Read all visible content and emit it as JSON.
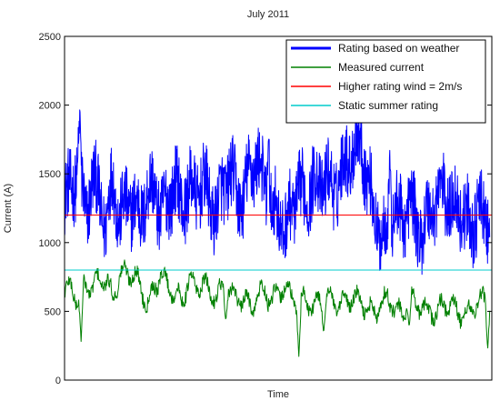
{
  "chart_data": {
    "type": "line",
    "title": "July 2011",
    "xlabel": "Time",
    "ylabel": "Current (A)",
    "xlim": [
      0,
      31
    ],
    "ylim": [
      0,
      2500
    ],
    "yticks": [
      0,
      500,
      1000,
      1500,
      2000,
      2500
    ],
    "xtick_labels": [],
    "grid": false,
    "legend_position": "top-right",
    "series": [
      {
        "name": "Rating based on weather",
        "color": "#0000ff",
        "style": "noisy",
        "x": [
          0,
          0.5,
          1,
          1.5,
          2,
          2.5,
          3,
          3.5,
          4,
          4.5,
          5,
          5.5,
          6,
          6.5,
          7,
          7.5,
          8,
          8.5,
          9,
          9.5,
          10,
          10.5,
          11,
          11.5,
          12,
          12.5,
          13,
          13.5,
          14,
          14.5,
          15,
          15.5,
          16,
          16.5,
          17,
          17.5,
          18,
          18.5,
          19,
          19.5,
          20,
          20.5,
          21,
          21.5,
          22,
          22.5,
          23,
          23.5,
          24,
          24.5,
          25,
          25.5,
          26,
          26.5,
          27,
          27.5,
          28,
          28.5,
          29,
          29.5,
          30,
          30.5,
          31
        ],
        "values": [
          1300,
          1400,
          1550,
          1200,
          1450,
          1350,
          1100,
          1500,
          1150,
          1300,
          1250,
          1200,
          1350,
          1400,
          1200,
          1300,
          1450,
          1250,
          1400,
          1350,
          1450,
          1300,
          1200,
          1400,
          1500,
          1350,
          1300,
          1550,
          1600,
          1400,
          1250,
          1200,
          1100,
          1250,
          1400,
          1300,
          1450,
          1400,
          1500,
          1350,
          1500,
          1600,
          1700,
          1750,
          1450,
          1200,
          1050,
          1100,
          1250,
          1150,
          1300,
          1150,
          1050,
          1250,
          1300,
          1400,
          1250,
          1300,
          1200,
          1100,
          1250,
          1150,
          1150
        ],
        "peaks": [
          [
            1.1,
            2060
          ],
          [
            14.8,
            1930
          ],
          [
            23.6,
            1900
          ]
        ]
      },
      {
        "name": "Measured current",
        "color": "#008000",
        "style": "noisy",
        "x": [
          0,
          0.5,
          1,
          1.5,
          2,
          2.5,
          3,
          3.5,
          4,
          4.5,
          5,
          5.5,
          6,
          6.5,
          7,
          7.5,
          8,
          8.5,
          9,
          9.5,
          10,
          10.5,
          11,
          11.5,
          12,
          12.5,
          13,
          13.5,
          14,
          14.5,
          15,
          15.5,
          16,
          16.5,
          17,
          17.5,
          18,
          18.5,
          19,
          19.5,
          20,
          20.5,
          21,
          21.5,
          22,
          22.5,
          23,
          23.5,
          24,
          24.5,
          25,
          25.5,
          26,
          26.5,
          27,
          27.5,
          28,
          28.5,
          29,
          29.5,
          30,
          30.5,
          31
        ],
        "values": [
          620,
          700,
          550,
          720,
          650,
          760,
          700,
          620,
          740,
          800,
          760,
          700,
          540,
          680,
          760,
          700,
          620,
          580,
          720,
          680,
          700,
          650,
          600,
          680,
          640,
          600,
          580,
          540,
          600,
          660,
          560,
          640,
          680,
          600,
          560,
          600,
          520,
          580,
          620,
          560,
          540,
          580,
          600,
          560,
          520,
          480,
          560,
          600,
          520,
          460,
          600,
          560,
          520,
          500,
          480,
          560,
          540,
          500,
          460,
          520,
          560,
          600,
          580
        ],
        "dips": [
          [
            1.2,
            280
          ],
          [
            11.7,
            430
          ],
          [
            17.0,
            170
          ],
          [
            18.8,
            340
          ],
          [
            25.0,
            380
          ],
          [
            30.7,
            220
          ]
        ]
      },
      {
        "name": "Higher rating wind = 2m/s",
        "color": "#ff0000",
        "style": "constant",
        "x": [
          0,
          31
        ],
        "values": [
          1200,
          1200
        ]
      },
      {
        "name": "Static summer rating",
        "color": "#00cccc",
        "style": "constant",
        "x": [
          0,
          31
        ],
        "values": [
          800,
          800
        ]
      }
    ]
  }
}
